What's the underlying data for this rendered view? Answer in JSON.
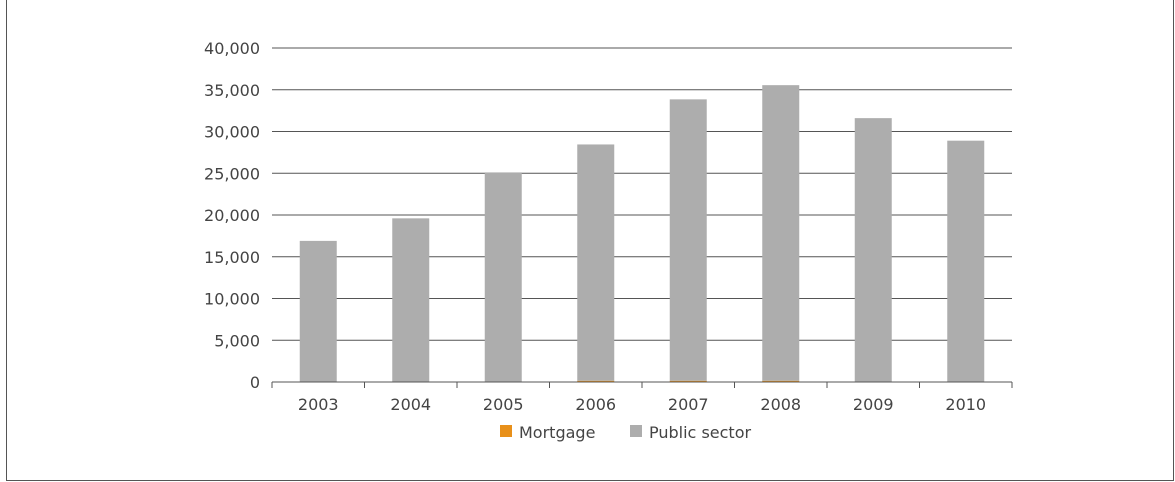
{
  "chart_data": {
    "type": "bar",
    "stacked": true,
    "categories": [
      "2003",
      "2004",
      "2005",
      "2006",
      "2007",
      "2008",
      "2009",
      "2010"
    ],
    "series": [
      {
        "name": "Mortgage",
        "color": "#E8901A",
        "values": [
          0,
          0,
          0,
          150,
          150,
          150,
          0,
          0
        ]
      },
      {
        "name": "Public sector",
        "color": "#ADADAD",
        "values": [
          16900,
          19600,
          25100,
          28300,
          33700,
          35400,
          31600,
          28900
        ]
      }
    ],
    "ylim": [
      0,
      40000
    ],
    "yticks": [
      "0",
      "5,000",
      "10,000",
      "15,000",
      "20,000",
      "25,000",
      "30,000",
      "35,000",
      "40,000"
    ],
    "ytick_values": [
      0,
      5000,
      10000,
      15000,
      20000,
      25000,
      30000,
      35000,
      40000
    ],
    "grid": true,
    "legend": "bottom"
  }
}
